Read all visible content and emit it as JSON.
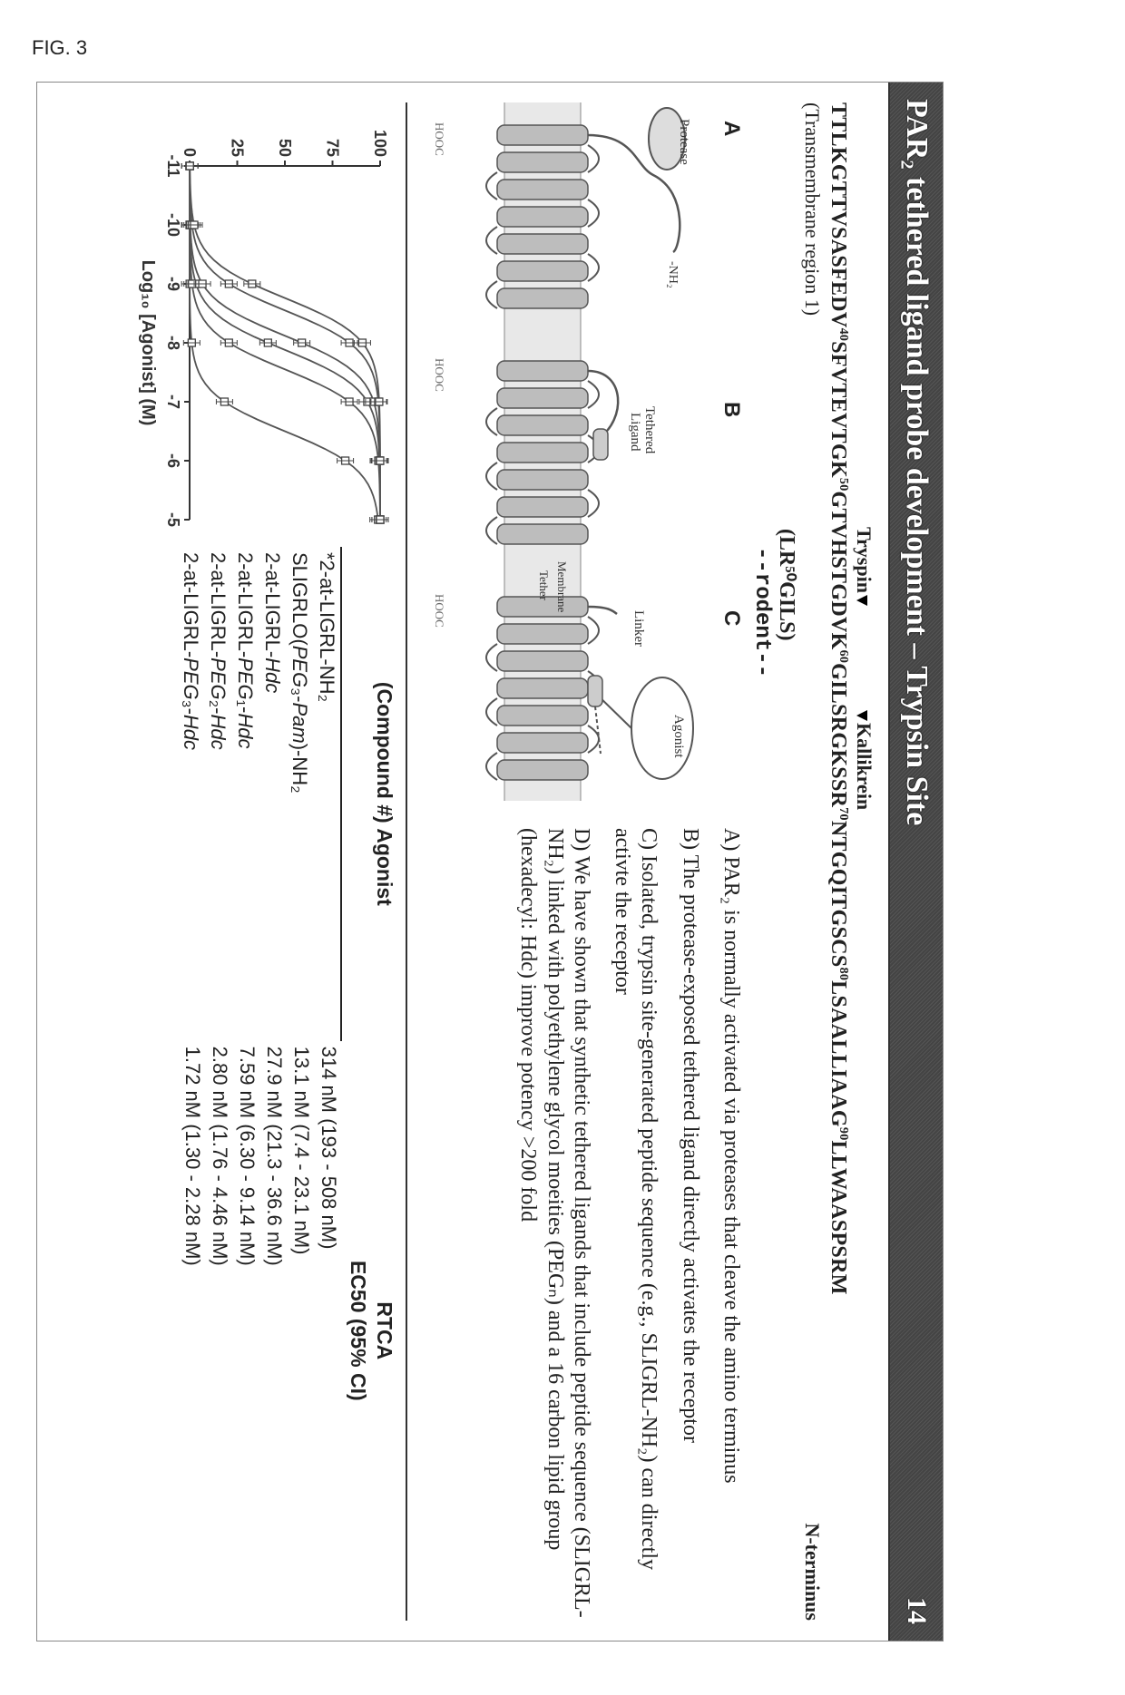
{
  "figure_label": "FIG. 3",
  "titlebar": {
    "title": "PAR₂ tethered ligand probe development – Trypsin Site",
    "pagenum": "14"
  },
  "enzymes": {
    "left": "Tryspin",
    "right": "Kallikrein"
  },
  "sequence": {
    "pre": "TTLKGTTVSASFEDV",
    "sup1": "40",
    "mid1": "SFVTEVTGK",
    "sup2": "50",
    "mid2": "GTVHSTGDVK",
    "sup3": "60",
    "mid3": "GILSRGKSSR",
    "sup4": "70",
    "mid4": "NTGQITGSCS",
    "sup5": "80",
    "mid5": "LSAALLIAAG",
    "sup6": "90",
    "tail": "LLWAASPSRM"
  },
  "region_note": "(Transmembrane region 1)",
  "nterm": "N-terminus",
  "rodent_seq": "(LR⁵⁰GILS)",
  "rodent_label": "--rodent--",
  "panel_labels": {
    "A": "A",
    "B": "B",
    "C": "C"
  },
  "diagram_labels": {
    "protease": "Protease",
    "tethered": "Tethered",
    "ligand": "Ligand",
    "linker": "Linker",
    "agonist": "Agonist",
    "membrane": "Membrane",
    "tether": "Tether",
    "hooc": "HOOC",
    "nh2": "-NH₂"
  },
  "bullets": {
    "A": "A) PAR₂ is normally activated via proteases that cleave the amino terminus",
    "B": "B) The protease-exposed tethered ligand directly activates the receptor",
    "C": "C) Isolated, trypsin site-generated peptide sequence (e.g., SLIGRL-NH₂) can directly activte the receptor",
    "D": "D) We have shown that synthetic tethered ligands that include peptide sequence (SLIGRL-NH₂) linked with polyethylene glycol moeities (PEGₙ) and a 16 carbon lipid group (hexadecyl: Hdc) improve potency >200 fold"
  },
  "chart": {
    "type": "line",
    "xlabel": "Log₁₀ [Agonist] (M)",
    "xticks": [
      "-11",
      "-10",
      "-9",
      "-8",
      "-7",
      "-6",
      "-5"
    ],
    "yticks": [
      "0",
      "25",
      "50",
      "75",
      "100"
    ],
    "xlim": [
      -11,
      -5
    ],
    "ylim": [
      0,
      100
    ],
    "series_count": 6,
    "line_color": "#555555",
    "marker": "square-open",
    "background": "#ffffff",
    "axis_color": "#333333",
    "fontsize_label": 20,
    "fontsize_tick": 18,
    "curves": [
      {
        "ec50": -6.5,
        "hill": 1.3
      },
      {
        "ec50": -7.88,
        "hill": 1.3
      },
      {
        "ec50": -7.55,
        "hill": 1.3
      },
      {
        "ec50": -8.12,
        "hill": 1.3
      },
      {
        "ec50": -8.55,
        "hill": 1.3
      },
      {
        "ec50": -8.76,
        "hill": 1.3
      }
    ]
  },
  "table": {
    "header_left": "(Compound #) Agonist",
    "header_right_top": "RTCA",
    "header_right_sub": "EC50 (95% CI)",
    "rows": [
      {
        "name": "*2-at-LIGRL-NH₂",
        "italic_from": null,
        "ec": "314 nM (193 - 508 nM)"
      },
      {
        "name": "SLIGRLO(PEG₃-Pam)-NH₂",
        "ec": "13.1 nM (7.4 - 23.1 nM)"
      },
      {
        "name": "2-at-LIGRL-Hdc",
        "ec": "27.9 nM (21.3 - 36.6 nM)"
      },
      {
        "name": "2-at-LIGRL-PEG₁-Hdc",
        "ec": "7.59 nM (6.30 - 9.14 nM)"
      },
      {
        "name": "2-at-LIGRL-PEG₂-Hdc",
        "ec": "2.80 nM (1.76 - 4.46 nM)"
      },
      {
        "name": "2-at-LIGRL-PEG₃-Hdc",
        "ec": "1.72 nM (1.30 - 2.28 nM)"
      }
    ]
  },
  "colors": {
    "titlebar_text": "#ffffff",
    "titlebar_bg": "#4a4a4a",
    "body_text": "#222222",
    "rule": "#333333",
    "receptor_fill": "#bdbdbd",
    "receptor_stroke": "#555555"
  }
}
